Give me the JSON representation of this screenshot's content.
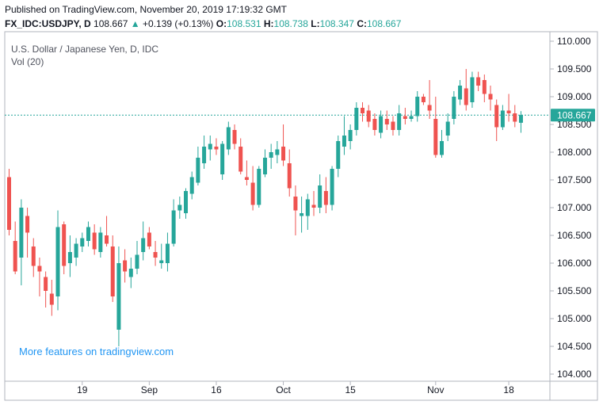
{
  "header": {
    "published": "Published on TradingView.com, November 20, 2019 17:19:32 GMT",
    "symbol": "FX_IDC:USDJPY, D",
    "last": "108.667",
    "arrow": "▲",
    "change": "+0.139 (+0.13%)",
    "o_label": "O:",
    "o_value": "108.531",
    "h_label": "H:",
    "h_value": "108.738",
    "l_label": "L:",
    "l_value": "108.347",
    "c_label": "C:",
    "c_value": "108.667"
  },
  "chart_title": "U.S. Dollar / Japanese Yen, D, IDC",
  "vol_label": "Vol (20)",
  "watermark": "More features on tradingview.com",
  "price_tag": "108.667",
  "colors": {
    "up": "#26a69a",
    "down": "#ef5350",
    "axis": "#787b86",
    "price_line": "#26a69a",
    "watermark": "#2196f3"
  },
  "chart_data": {
    "type": "candlestick",
    "ylim": [
      104.0,
      110.0
    ],
    "y_ticks": [
      "110.000",
      "109.500",
      "109.000",
      "108.500",
      "108.000",
      "107.500",
      "107.000",
      "106.500",
      "106.000",
      "105.500",
      "105.000",
      "104.500",
      "104.000"
    ],
    "x_ticks": [
      "19",
      "Sep",
      "16",
      "Oct",
      "15",
      "Nov",
      "18"
    ],
    "grid": false,
    "last_price": 108.667,
    "candles": [
      {
        "o": 107.55,
        "h": 107.7,
        "l": 106.5,
        "c": 106.6
      },
      {
        "o": 106.4,
        "h": 106.75,
        "l": 105.8,
        "c": 105.85
      },
      {
        "o": 106.1,
        "h": 107.15,
        "l": 105.6,
        "c": 107.0
      },
      {
        "o": 106.85,
        "h": 107.0,
        "l": 106.1,
        "c": 106.55
      },
      {
        "o": 106.3,
        "h": 106.45,
        "l": 105.75,
        "c": 105.95
      },
      {
        "o": 105.95,
        "h": 106.1,
        "l": 105.4,
        "c": 105.85
      },
      {
        "o": 105.75,
        "h": 105.85,
        "l": 105.2,
        "c": 105.5
      },
      {
        "o": 105.45,
        "h": 105.7,
        "l": 105.05,
        "c": 105.25
      },
      {
        "o": 105.4,
        "h": 106.95,
        "l": 105.15,
        "c": 106.65
      },
      {
        "o": 106.7,
        "h": 106.75,
        "l": 105.8,
        "c": 105.95
      },
      {
        "o": 106.0,
        "h": 106.5,
        "l": 105.75,
        "c": 106.2
      },
      {
        "o": 106.1,
        "h": 106.45,
        "l": 105.95,
        "c": 106.35
      },
      {
        "o": 106.3,
        "h": 106.55,
        "l": 106.2,
        "c": 106.45
      },
      {
        "o": 106.4,
        "h": 106.75,
        "l": 106.3,
        "c": 106.65
      },
      {
        "o": 106.55,
        "h": 106.7,
        "l": 106.15,
        "c": 106.25
      },
      {
        "o": 106.2,
        "h": 106.65,
        "l": 106.1,
        "c": 106.55
      },
      {
        "o": 106.5,
        "h": 106.85,
        "l": 106.3,
        "c": 106.35
      },
      {
        "o": 106.3,
        "h": 106.5,
        "l": 105.3,
        "c": 105.4
      },
      {
        "o": 104.8,
        "h": 106.3,
        "l": 104.5,
        "c": 106.0
      },
      {
        "o": 106.05,
        "h": 106.25,
        "l": 105.65,
        "c": 105.85
      },
      {
        "o": 105.75,
        "h": 106.1,
        "l": 105.55,
        "c": 105.9
      },
      {
        "o": 105.9,
        "h": 106.4,
        "l": 105.8,
        "c": 106.15
      },
      {
        "o": 106.2,
        "h": 106.75,
        "l": 106.05,
        "c": 106.45
      },
      {
        "o": 106.55,
        "h": 106.65,
        "l": 106.25,
        "c": 106.3
      },
      {
        "o": 106.2,
        "h": 106.4,
        "l": 105.95,
        "c": 106.1
      },
      {
        "o": 106.0,
        "h": 106.35,
        "l": 105.9,
        "c": 106.05
      },
      {
        "o": 106.0,
        "h": 106.55,
        "l": 105.85,
        "c": 106.35
      },
      {
        "o": 106.35,
        "h": 107.15,
        "l": 106.3,
        "c": 106.95
      },
      {
        "o": 106.95,
        "h": 107.2,
        "l": 106.8,
        "c": 107.05
      },
      {
        "o": 106.9,
        "h": 107.35,
        "l": 106.8,
        "c": 107.3
      },
      {
        "o": 107.25,
        "h": 107.65,
        "l": 107.15,
        "c": 107.55
      },
      {
        "o": 107.45,
        "h": 108.1,
        "l": 107.4,
        "c": 107.9
      },
      {
        "o": 107.8,
        "h": 108.3,
        "l": 107.7,
        "c": 108.1
      },
      {
        "o": 108.05,
        "h": 108.3,
        "l": 107.85,
        "c": 108.15
      },
      {
        "o": 108.1,
        "h": 108.25,
        "l": 107.95,
        "c": 108.05
      },
      {
        "o": 107.6,
        "h": 108.2,
        "l": 107.5,
        "c": 108.15
      },
      {
        "o": 108.05,
        "h": 108.55,
        "l": 107.95,
        "c": 108.45
      },
      {
        "o": 108.4,
        "h": 108.5,
        "l": 108.05,
        "c": 108.15
      },
      {
        "o": 108.1,
        "h": 108.25,
        "l": 107.6,
        "c": 107.65
      },
      {
        "o": 107.55,
        "h": 107.85,
        "l": 107.4,
        "c": 107.5
      },
      {
        "o": 107.45,
        "h": 107.75,
        "l": 106.95,
        "c": 107.05
      },
      {
        "o": 107.05,
        "h": 107.75,
        "l": 107.0,
        "c": 107.7
      },
      {
        "o": 107.6,
        "h": 108.05,
        "l": 107.55,
        "c": 107.9
      },
      {
        "o": 107.9,
        "h": 108.15,
        "l": 107.7,
        "c": 108.0
      },
      {
        "o": 107.95,
        "h": 108.2,
        "l": 107.8,
        "c": 108.05
      },
      {
        "o": 108.1,
        "h": 108.5,
        "l": 107.75,
        "c": 107.85
      },
      {
        "o": 107.8,
        "h": 108.05,
        "l": 107.2,
        "c": 107.35
      },
      {
        "o": 107.2,
        "h": 107.4,
        "l": 106.5,
        "c": 106.95
      },
      {
        "o": 106.85,
        "h": 107.2,
        "l": 106.55,
        "c": 106.9
      },
      {
        "o": 106.85,
        "h": 107.25,
        "l": 106.6,
        "c": 107.15
      },
      {
        "o": 107.05,
        "h": 107.3,
        "l": 106.85,
        "c": 107.0
      },
      {
        "o": 107.0,
        "h": 107.6,
        "l": 106.9,
        "c": 107.4
      },
      {
        "o": 107.3,
        "h": 107.55,
        "l": 106.9,
        "c": 107.05
      },
      {
        "o": 107.05,
        "h": 107.75,
        "l": 106.95,
        "c": 107.7
      },
      {
        "o": 107.7,
        "h": 108.3,
        "l": 107.55,
        "c": 108.2
      },
      {
        "o": 108.1,
        "h": 108.65,
        "l": 107.95,
        "c": 108.3
      },
      {
        "o": 108.2,
        "h": 108.5,
        "l": 108.05,
        "c": 108.4
      },
      {
        "o": 108.4,
        "h": 108.9,
        "l": 108.3,
        "c": 108.8
      },
      {
        "o": 108.8,
        "h": 108.9,
        "l": 108.55,
        "c": 108.7
      },
      {
        "o": 108.75,
        "h": 108.85,
        "l": 108.45,
        "c": 108.55
      },
      {
        "o": 108.6,
        "h": 108.7,
        "l": 108.3,
        "c": 108.4
      },
      {
        "o": 108.35,
        "h": 108.75,
        "l": 108.25,
        "c": 108.65
      },
      {
        "o": 108.6,
        "h": 108.75,
        "l": 108.4,
        "c": 108.5
      },
      {
        "o": 108.55,
        "h": 108.65,
        "l": 108.3,
        "c": 108.4
      },
      {
        "o": 108.4,
        "h": 108.85,
        "l": 108.3,
        "c": 108.7
      },
      {
        "o": 108.65,
        "h": 108.8,
        "l": 108.5,
        "c": 108.6
      },
      {
        "o": 108.6,
        "h": 108.75,
        "l": 108.55,
        "c": 108.65
      },
      {
        "o": 108.65,
        "h": 109.1,
        "l": 108.55,
        "c": 109.0
      },
      {
        "o": 109.0,
        "h": 109.05,
        "l": 108.85,
        "c": 108.9
      },
      {
        "o": 108.85,
        "h": 109.3,
        "l": 108.6,
        "c": 108.75
      },
      {
        "o": 108.6,
        "h": 109.0,
        "l": 107.9,
        "c": 107.95
      },
      {
        "o": 107.95,
        "h": 108.4,
        "l": 107.9,
        "c": 108.2
      },
      {
        "o": 108.3,
        "h": 108.7,
        "l": 108.2,
        "c": 108.55
      },
      {
        "o": 108.6,
        "h": 109.1,
        "l": 108.5,
        "c": 109.0
      },
      {
        "o": 108.95,
        "h": 109.3,
        "l": 108.85,
        "c": 109.2
      },
      {
        "o": 109.15,
        "h": 109.5,
        "l": 108.75,
        "c": 108.85
      },
      {
        "o": 108.9,
        "h": 109.45,
        "l": 108.8,
        "c": 109.35
      },
      {
        "o": 109.35,
        "h": 109.45,
        "l": 109.1,
        "c": 109.2
      },
      {
        "o": 109.3,
        "h": 109.4,
        "l": 108.9,
        "c": 109.05
      },
      {
        "o": 109.05,
        "h": 109.2,
        "l": 108.75,
        "c": 108.95
      },
      {
        "o": 108.85,
        "h": 108.95,
        "l": 108.2,
        "c": 108.45
      },
      {
        "o": 108.45,
        "h": 108.85,
        "l": 108.4,
        "c": 108.75
      },
      {
        "o": 108.75,
        "h": 109.05,
        "l": 108.55,
        "c": 108.7
      },
      {
        "o": 108.7,
        "h": 108.85,
        "l": 108.45,
        "c": 108.55
      },
      {
        "o": 108.53,
        "h": 108.74,
        "l": 108.35,
        "c": 108.67
      }
    ]
  }
}
